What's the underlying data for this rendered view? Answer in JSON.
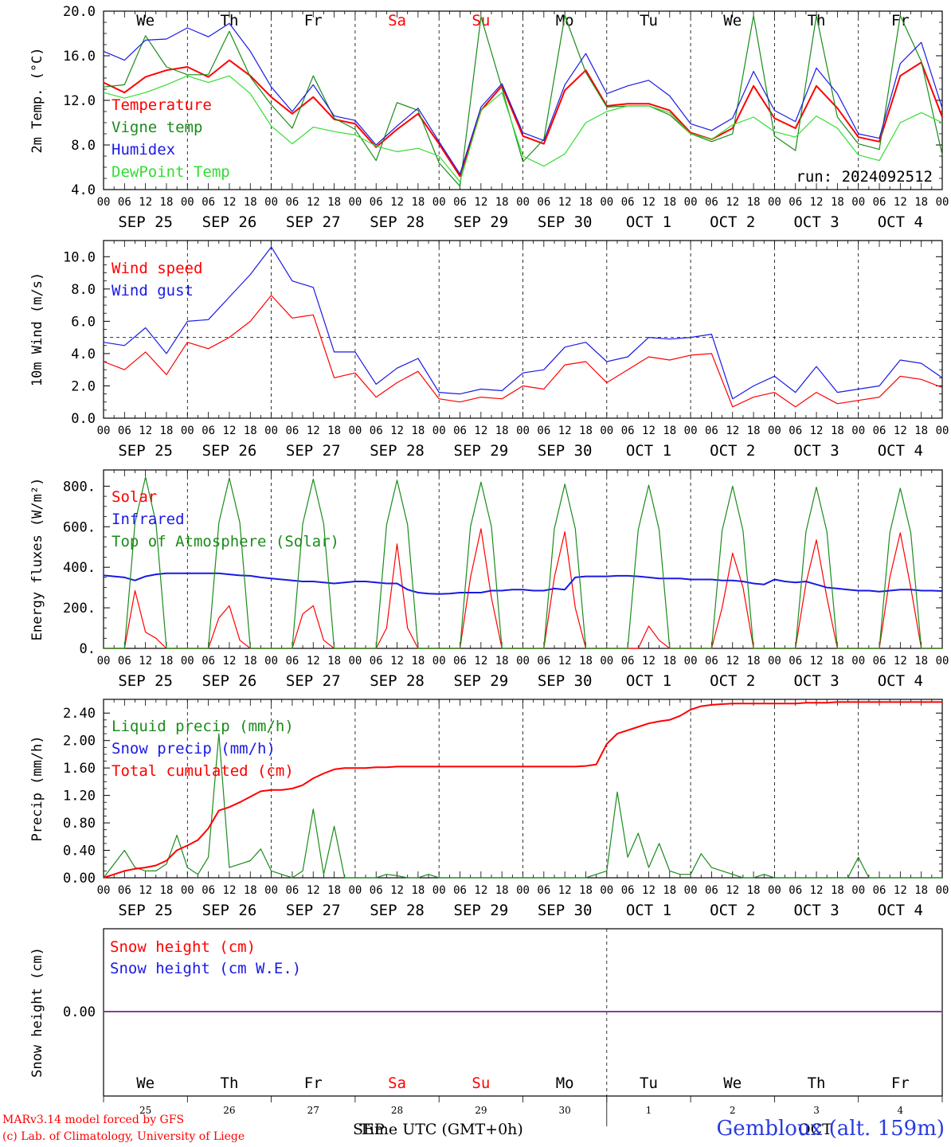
{
  "run_label": "run: 2024092512",
  "days": [
    {
      "dow": "We",
      "dow_color": "#000000",
      "date": "SEP 25",
      "num": "25"
    },
    {
      "dow": "Th",
      "dow_color": "#000000",
      "date": "SEP 26",
      "num": "26"
    },
    {
      "dow": "Fr",
      "dow_color": "#000000",
      "date": "SEP 27",
      "num": "27"
    },
    {
      "dow": "Sa",
      "dow_color": "#ff0000",
      "date": "SEP 28",
      "num": "28"
    },
    {
      "dow": "Su",
      "dow_color": "#ff0000",
      "date": "SEP 29",
      "num": "29"
    },
    {
      "dow": "Mo",
      "dow_color": "#000000",
      "date": "SEP 30",
      "num": "30"
    },
    {
      "dow": "Tu",
      "dow_color": "#000000",
      "date": "OCT  1",
      "num": "1"
    },
    {
      "dow": "We",
      "dow_color": "#000000",
      "date": "OCT  2",
      "num": "2"
    },
    {
      "dow": "Th",
      "dow_color": "#000000",
      "date": "OCT  3",
      "num": "3"
    },
    {
      "dow": "Fr",
      "dow_color": "#000000",
      "date": "OCT  4",
      "num": "4"
    }
  ],
  "hour_labels": [
    "00",
    "06",
    "12",
    "18"
  ],
  "hour_label_end": "00",
  "xlabel": "Time UTC (GMT+0h)",
  "x_month_left": "SEP",
  "x_month_right": "OCT",
  "footer": {
    "model": "MARv3.14 model forced by GFS",
    "lab": "(c) Lab. of Climatology, University of Liege",
    "location": "Gembloux (alt. 159m)"
  },
  "colors": {
    "red": "#ff0000",
    "green": "#1a8c1a",
    "blue": "#1a1ae6",
    "lightgreen": "#33dd33",
    "purple": "#8040a0"
  },
  "chart_data": [
    {
      "type": "line",
      "ylabel": "2m Temp. (°C)",
      "ylim": [
        4.0,
        20.0
      ],
      "yticks": [
        "4.0",
        "8.0",
        "12.0",
        "16.0",
        "20.0"
      ],
      "x_hours": [
        0,
        6,
        12,
        18,
        24,
        30,
        36,
        42,
        48,
        54,
        60,
        66,
        72,
        78,
        84,
        90,
        96,
        102,
        108,
        114,
        120,
        126,
        132,
        138,
        144,
        150,
        156,
        162,
        168,
        174,
        180,
        186,
        192,
        198,
        204,
        210,
        216,
        222,
        228,
        234,
        240
      ],
      "series": [
        {
          "name": "Temperature",
          "color": "#ff0000",
          "values": [
            13.6,
            12.7,
            14.1,
            14.7,
            15.0,
            14.1,
            15.6,
            14.2,
            12.3,
            10.8,
            12.3,
            10.3,
            9.9,
            7.8,
            9.4,
            10.8,
            8.1,
            5.2,
            11.1,
            13.3,
            8.8,
            8.1,
            12.9,
            14.7,
            11.5,
            11.7,
            11.7,
            11.1,
            9.1,
            8.5,
            9.5,
            13.3,
            10.4,
            9.5,
            13.3,
            11.3,
            8.7,
            8.3,
            14.2,
            15.4,
            10.5
          ]
        },
        {
          "name": "Vigne temp",
          "color": "#1a8c1a",
          "values": [
            13.2,
            13.4,
            17.8,
            15.0,
            14.3,
            14.3,
            18.2,
            14.1,
            11.6,
            9.5,
            14.2,
            10.4,
            9.4,
            6.6,
            11.8,
            11.1,
            6.4,
            4.3,
            19.5,
            13.1,
            6.5,
            8.5,
            19.6,
            14.5,
            11.4,
            11.5,
            11.5,
            10.7,
            9.0,
            8.3,
            9.0,
            19.6,
            8.8,
            7.5,
            19.6,
            10.5,
            8.1,
            7.6,
            19.6,
            15.5,
            7.1
          ]
        },
        {
          "name": "Humidex",
          "color": "#1a1ae6",
          "values": [
            16.4,
            15.6,
            17.4,
            17.5,
            18.5,
            17.7,
            18.9,
            16.4,
            13.2,
            11.0,
            13.4,
            10.6,
            10.2,
            8.0,
            9.7,
            11.3,
            8.3,
            5.4,
            11.4,
            13.5,
            9.1,
            8.4,
            13.4,
            16.2,
            12.6,
            13.3,
            13.8,
            12.4,
            9.9,
            9.3,
            10.4,
            14.6,
            11.1,
            10.1,
            14.9,
            12.6,
            9.0,
            8.6,
            15.3,
            17.2,
            11.3
          ]
        },
        {
          "name": "DewPoint Temp",
          "color": "#33dd33",
          "values": [
            12.7,
            12.2,
            12.7,
            13.4,
            14.2,
            13.6,
            14.2,
            12.6,
            9.7,
            8.1,
            9.6,
            9.2,
            8.9,
            7.9,
            7.4,
            7.7,
            7.0,
            4.7,
            11.1,
            12.7,
            7.0,
            6.1,
            7.2,
            10.0,
            11.0,
            11.5,
            11.5,
            10.9,
            9.0,
            8.5,
            9.8,
            10.5,
            9.2,
            8.7,
            10.6,
            9.5,
            7.1,
            6.6,
            10.0,
            10.9,
            10.0
          ]
        }
      ]
    },
    {
      "type": "line",
      "ylabel": "10m Wind (m/s)",
      "ylim": [
        0.0,
        11.0
      ],
      "yticks": [
        "0.0",
        "2.0",
        "4.0",
        "6.0",
        "8.0",
        "10.0"
      ],
      "reference_line": 5.0,
      "x_hours": [
        0,
        6,
        12,
        18,
        24,
        30,
        36,
        42,
        48,
        54,
        60,
        66,
        72,
        78,
        84,
        90,
        96,
        102,
        108,
        114,
        120,
        126,
        132,
        138,
        144,
        150,
        156,
        162,
        168,
        174,
        180,
        186,
        192,
        198,
        204,
        210,
        216,
        222,
        228,
        234,
        240
      ],
      "series": [
        {
          "name": "Wind speed",
          "color": "#ff0000",
          "values": [
            3.5,
            3.0,
            4.1,
            2.7,
            4.7,
            4.3,
            5.0,
            6.0,
            7.6,
            6.2,
            6.4,
            2.5,
            2.8,
            1.3,
            2.2,
            2.9,
            1.2,
            1.0,
            1.3,
            1.2,
            2.0,
            1.8,
            3.3,
            3.5,
            2.2,
            3.0,
            3.8,
            3.6,
            3.9,
            4.0,
            0.7,
            1.3,
            1.6,
            0.7,
            1.6,
            0.9,
            1.1,
            1.3,
            2.6,
            2.4,
            1.9
          ]
        },
        {
          "name": "Wind gust",
          "color": "#1a1ae6",
          "values": [
            4.7,
            4.5,
            5.6,
            4.0,
            6.0,
            6.1,
            7.5,
            8.9,
            10.6,
            8.5,
            8.1,
            4.1,
            4.1,
            2.1,
            3.1,
            3.7,
            1.6,
            1.5,
            1.8,
            1.7,
            2.8,
            3.0,
            4.4,
            4.7,
            3.5,
            3.8,
            5.0,
            4.9,
            5.0,
            5.2,
            1.2,
            2.0,
            2.6,
            1.6,
            3.2,
            1.6,
            1.8,
            2.0,
            3.6,
            3.4,
            2.5
          ]
        }
      ]
    },
    {
      "type": "line",
      "ylabel": "Energy fluxes (W/m²)",
      "ylim": [
        0,
        880
      ],
      "yticks": [
        "0.",
        "200.",
        "400.",
        "600.",
        "800."
      ],
      "x_hours": [
        0,
        3,
        6,
        9,
        12,
        15,
        18,
        21,
        24,
        27,
        30,
        33,
        36,
        39,
        42,
        45,
        48,
        51,
        54,
        57,
        60,
        63,
        66,
        69,
        72,
        75,
        78,
        81,
        84,
        87,
        90,
        93,
        96,
        99,
        102,
        105,
        108,
        111,
        114,
        117,
        120,
        123,
        126,
        129,
        132,
        135,
        138,
        141,
        144,
        147,
        150,
        153,
        156,
        159,
        162,
        165,
        168,
        171,
        174,
        177,
        180,
        183,
        186,
        189,
        192,
        195,
        198,
        201,
        204,
        207,
        210,
        213,
        216,
        219,
        222,
        225,
        228,
        231,
        234,
        237,
        240
      ],
      "series": [
        {
          "name": "Solar",
          "color": "#ff0000",
          "values": [
            0,
            0,
            0,
            285,
            80,
            50,
            0,
            0,
            0,
            0,
            0,
            150,
            210,
            40,
            0,
            0,
            0,
            0,
            0,
            170,
            210,
            40,
            0,
            0,
            0,
            0,
            0,
            100,
            515,
            100,
            0,
            0,
            0,
            0,
            0,
            350,
            590,
            250,
            0,
            0,
            0,
            0,
            0,
            350,
            575,
            200,
            0,
            0,
            0,
            0,
            0,
            0,
            110,
            40,
            0,
            0,
            0,
            0,
            0,
            200,
            470,
            300,
            0,
            0,
            0,
            0,
            0,
            320,
            535,
            250,
            0,
            0,
            0,
            0,
            0,
            350,
            570,
            300,
            0,
            0,
            0
          ]
        },
        {
          "name": "Infrared",
          "color": "#1a1ae6",
          "values": [
            360,
            355,
            350,
            335,
            355,
            365,
            370,
            370,
            370,
            370,
            370,
            370,
            365,
            360,
            358,
            350,
            345,
            340,
            335,
            330,
            330,
            325,
            320,
            325,
            330,
            330,
            325,
            320,
            320,
            290,
            275,
            270,
            268,
            270,
            275,
            275,
            275,
            285,
            285,
            290,
            290,
            285,
            285,
            295,
            290,
            350,
            355,
            355,
            355,
            358,
            358,
            355,
            350,
            345,
            345,
            345,
            340,
            340,
            340,
            335,
            335,
            330,
            320,
            315,
            340,
            330,
            325,
            330,
            315,
            300,
            295,
            290,
            285,
            285,
            280,
            285,
            290,
            290,
            285,
            285,
            283
          ]
        },
        {
          "name": "Top of Atmosphere (Solar)",
          "color": "#1a8c1a",
          "values": [
            0,
            0,
            0,
            620,
            845,
            620,
            0,
            0,
            0,
            0,
            0,
            620,
            840,
            620,
            0,
            0,
            0,
            0,
            0,
            615,
            835,
            615,
            0,
            0,
            0,
            0,
            0,
            610,
            830,
            610,
            0,
            0,
            0,
            0,
            0,
            600,
            820,
            600,
            0,
            0,
            0,
            0,
            0,
            590,
            810,
            590,
            0,
            0,
            0,
            0,
            0,
            585,
            805,
            585,
            0,
            0,
            0,
            0,
            0,
            580,
            800,
            580,
            0,
            0,
            0,
            0,
            0,
            575,
            795,
            575,
            0,
            0,
            0,
            0,
            0,
            570,
            790,
            570,
            0,
            0,
            0
          ]
        }
      ]
    },
    {
      "type": "line",
      "ylabel": "Precip (mm/h)",
      "ylim": [
        0.0,
        2.6
      ],
      "yticks": [
        "0.00",
        "0.40",
        "0.80",
        "1.20",
        "1.60",
        "2.00",
        "2.40"
      ],
      "x_hours": [
        0,
        3,
        6,
        9,
        12,
        15,
        18,
        21,
        24,
        27,
        30,
        33,
        36,
        39,
        42,
        45,
        48,
        51,
        54,
        57,
        60,
        63,
        66,
        69,
        72,
        75,
        78,
        81,
        84,
        87,
        90,
        93,
        96,
        99,
        102,
        105,
        108,
        111,
        114,
        117,
        120,
        123,
        126,
        129,
        132,
        135,
        138,
        141,
        144,
        147,
        150,
        153,
        156,
        159,
        162,
        165,
        168,
        171,
        174,
        177,
        180,
        183,
        186,
        189,
        192,
        195,
        198,
        201,
        204,
        207,
        210,
        213,
        216,
        219,
        222,
        225,
        228,
        231,
        234,
        237,
        240
      ],
      "series": [
        {
          "name": "Liquid precip (mm/h)",
          "color": "#1a8c1a",
          "values": [
            0.0,
            0.2,
            0.4,
            0.15,
            0.1,
            0.1,
            0.2,
            0.62,
            0.15,
            0.05,
            0.3,
            2.1,
            0.15,
            0.2,
            0.25,
            0.42,
            0.1,
            0.05,
            0.0,
            0.1,
            1.0,
            0.05,
            0.75,
            0.0,
            0.0,
            0.0,
            0.0,
            0.05,
            0.03,
            0.0,
            0.0,
            0.05,
            0.0,
            0.0,
            0.0,
            0.0,
            0.0,
            0.0,
            0.0,
            0.0,
            0.0,
            0.0,
            0.0,
            0.0,
            0.0,
            0.0,
            0.0,
            0.05,
            0.1,
            1.25,
            0.3,
            0.65,
            0.15,
            0.5,
            0.1,
            0.05,
            0.05,
            0.35,
            0.15,
            0.1,
            0.05,
            0.0,
            0.0,
            0.05,
            0.0,
            0.0,
            0.0,
            0.0,
            0.0,
            0.0,
            0.0,
            0.0,
            0.3,
            0.0,
            0.0,
            0.0,
            0.0,
            0.0,
            0.0,
            0.0,
            0.0
          ]
        },
        {
          "name": "Snow precip (mm/h)",
          "color": "#1a1ae6",
          "values": []
        },
        {
          "name": "Total cumulated (cm)",
          "color": "#ff0000",
          "values": [
            0.0,
            0.05,
            0.1,
            0.13,
            0.15,
            0.18,
            0.25,
            0.4,
            0.47,
            0.55,
            0.72,
            0.98,
            1.03,
            1.1,
            1.18,
            1.26,
            1.28,
            1.28,
            1.3,
            1.35,
            1.45,
            1.52,
            1.58,
            1.6,
            1.6,
            1.6,
            1.61,
            1.61,
            1.62,
            1.62,
            1.62,
            1.62,
            1.62,
            1.62,
            1.62,
            1.62,
            1.62,
            1.62,
            1.62,
            1.62,
            1.62,
            1.62,
            1.62,
            1.62,
            1.62,
            1.62,
            1.63,
            1.65,
            1.95,
            2.1,
            2.15,
            2.2,
            2.25,
            2.28,
            2.3,
            2.36,
            2.45,
            2.5,
            2.52,
            2.53,
            2.54,
            2.54,
            2.54,
            2.54,
            2.54,
            2.54,
            2.54,
            2.55,
            2.55,
            2.55,
            2.56,
            2.56,
            2.56,
            2.56,
            2.56,
            2.56,
            2.56,
            2.56,
            2.56,
            2.56,
            2.56
          ]
        }
      ]
    },
    {
      "type": "line",
      "ylabel": "Snow height (cm)",
      "yticks": [
        "0.00"
      ],
      "series": [
        {
          "name": "Snow height (cm)",
          "color": "#ff0000",
          "values": [
            0.0,
            0.0
          ]
        },
        {
          "name": "Snow height (cm W.E.)",
          "color": "#1a1ae6",
          "values": [
            0.0,
            0.0
          ]
        }
      ]
    }
  ]
}
